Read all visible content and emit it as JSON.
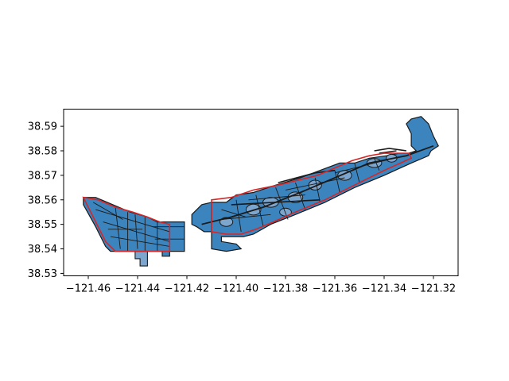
{
  "chart_data": {
    "type": "map",
    "xlim": [
      -121.47,
      -121.31
    ],
    "ylim": [
      38.529,
      38.597
    ],
    "x_ticks": [
      -121.46,
      -121.44,
      -121.42,
      -121.4,
      -121.38,
      -121.36,
      -121.34,
      -121.32
    ],
    "x_tick_labels": [
      "−121.46",
      "−121.44",
      "−121.42",
      "−121.40",
      "−121.38",
      "−121.36",
      "−121.34",
      "−121.32"
    ],
    "y_ticks": [
      38.53,
      38.54,
      38.55,
      38.56,
      38.57,
      38.58,
      38.59
    ],
    "y_tick_labels": [
      "38.53",
      "38.54",
      "38.55",
      "38.56",
      "38.57",
      "38.58",
      "38.59"
    ],
    "fill_color": "#3c84bd",
    "fill_light_color": "#7da6cf",
    "edge_color": "#1a1a1a",
    "outline_color": "#d62728",
    "grid": false,
    "west_region": {
      "shape": [
        [
          -121.462,
          38.561
        ],
        [
          -121.457,
          38.561
        ],
        [
          -121.45,
          38.558
        ],
        [
          -121.443,
          38.555
        ],
        [
          -121.436,
          38.553
        ],
        [
          -121.432,
          38.551
        ],
        [
          -121.426,
          38.551
        ],
        [
          -121.421,
          38.551
        ],
        [
          -121.421,
          38.539
        ],
        [
          -121.427,
          38.539
        ],
        [
          -121.427,
          38.537
        ],
        [
          -121.43,
          38.537
        ],
        [
          -121.43,
          38.539
        ],
        [
          -121.445,
          38.539
        ],
        [
          -121.451,
          38.539
        ],
        [
          -121.453,
          38.541
        ],
        [
          -121.457,
          38.549
        ],
        [
          -121.462,
          38.558
        ]
      ],
      "extension": [
        [
          -121.439,
          38.539
        ],
        [
          -121.436,
          38.539
        ],
        [
          -121.436,
          38.533
        ],
        [
          -121.439,
          38.533
        ],
        [
          -121.439,
          38.536
        ],
        [
          -121.441,
          38.536
        ],
        [
          -121.441,
          38.539
        ]
      ],
      "outline": [
        [
          -121.462,
          38.561
        ],
        [
          -121.456,
          38.56
        ],
        [
          -121.449,
          38.557
        ],
        [
          -121.442,
          38.555
        ],
        [
          -121.436,
          38.553
        ],
        [
          -121.431,
          38.551
        ],
        [
          -121.427,
          38.55
        ],
        [
          -121.427,
          38.539
        ],
        [
          -121.449,
          38.539
        ],
        [
          -121.453,
          38.543
        ],
        [
          -121.457,
          38.551
        ],
        [
          -121.462,
          38.561
        ]
      ],
      "streets": [
        [
          [
            -121.457,
            38.556
          ],
          [
            -121.427,
            38.547
          ]
        ],
        [
          [
            -121.454,
            38.551
          ],
          [
            -121.427,
            38.543
          ]
        ],
        [
          [
            -121.451,
            38.545
          ],
          [
            -121.427,
            38.541
          ]
        ],
        [
          [
            -121.444,
            38.555
          ],
          [
            -121.444,
            38.539
          ]
        ],
        [
          [
            -121.437,
            38.553
          ],
          [
            -121.437,
            38.539
          ]
        ],
        [
          [
            -121.432,
            38.551
          ],
          [
            -121.432,
            38.539
          ]
        ],
        [
          [
            -121.449,
            38.557
          ],
          [
            -121.447,
            38.54
          ]
        ],
        [
          [
            -121.441,
            38.554
          ],
          [
            -121.44,
            38.54
          ]
        ],
        [
          [
            -121.458,
            38.559
          ],
          [
            -121.446,
            38.552
          ]
        ],
        [
          [
            -121.434,
            38.549
          ],
          [
            -121.421,
            38.549
          ]
        ],
        [
          [
            -121.433,
            38.544
          ],
          [
            -121.421,
            38.544
          ]
        ],
        [
          [
            -121.452,
            38.548
          ],
          [
            -121.438,
            38.548
          ]
        ]
      ]
    },
    "east_region": {
      "shape": [
        [
          -121.41,
          38.559
        ],
        [
          -121.404,
          38.559
        ],
        [
          -121.4,
          38.562
        ],
        [
          -121.393,
          38.563
        ],
        [
          -121.384,
          38.566
        ],
        [
          -121.374,
          38.569
        ],
        [
          -121.366,
          38.572
        ],
        [
          -121.358,
          38.575
        ],
        [
          -121.352,
          38.575
        ],
        [
          -121.346,
          38.577
        ],
        [
          -121.339,
          38.578
        ],
        [
          -121.334,
          38.579
        ],
        [
          -121.33,
          38.579
        ],
        [
          -121.327,
          38.58
        ],
        [
          -121.329,
          38.582
        ],
        [
          -121.329,
          38.587
        ],
        [
          -121.331,
          38.591
        ],
        [
          -121.329,
          38.593
        ],
        [
          -121.325,
          38.594
        ],
        [
          -121.322,
          38.591
        ],
        [
          -121.32,
          38.586
        ],
        [
          -121.318,
          38.582
        ],
        [
          -121.321,
          38.58
        ],
        [
          -121.322,
          38.578
        ],
        [
          -121.329,
          38.575
        ],
        [
          -121.34,
          38.57
        ],
        [
          -121.352,
          38.565
        ],
        [
          -121.364,
          38.559
        ],
        [
          -121.376,
          38.554
        ],
        [
          -121.386,
          38.55
        ],
        [
          -121.393,
          38.546
        ],
        [
          -121.397,
          38.545
        ],
        [
          -121.401,
          38.545
        ],
        [
          -121.406,
          38.545
        ],
        [
          -121.406,
          38.543
        ],
        [
          -121.4,
          38.542
        ],
        [
          -121.398,
          38.54
        ],
        [
          -121.404,
          38.539
        ],
        [
          -121.41,
          38.54
        ]
      ],
      "west_tab": [
        [
          -121.41,
          38.559
        ],
        [
          -121.414,
          38.558
        ],
        [
          -121.418,
          38.554
        ],
        [
          -121.418,
          38.55
        ],
        [
          -121.416,
          38.549
        ],
        [
          -121.413,
          38.547
        ],
        [
          -121.41,
          38.547
        ]
      ],
      "outline": [
        [
          -121.41,
          38.56
        ],
        [
          -121.402,
          38.561
        ],
        [
          -121.393,
          38.564
        ],
        [
          -121.383,
          38.566
        ],
        [
          -121.375,
          38.568
        ],
        [
          -121.367,
          38.57
        ],
        [
          -121.36,
          38.573
        ],
        [
          -121.353,
          38.576
        ],
        [
          -121.346,
          38.578
        ],
        [
          -121.34,
          38.579
        ],
        [
          -121.33,
          38.579
        ],
        [
          -121.329,
          38.577
        ],
        [
          -121.34,
          38.572
        ],
        [
          -121.352,
          38.566
        ],
        [
          -121.364,
          38.56
        ],
        [
          -121.376,
          38.555
        ],
        [
          -121.385,
          38.551
        ],
        [
          -121.392,
          38.548
        ],
        [
          -121.398,
          38.546
        ],
        [
          -121.404,
          38.546
        ],
        [
          -121.41,
          38.547
        ],
        [
          -121.41,
          38.56
        ]
      ],
      "highway": [
        [
          -121.414,
          38.55
        ],
        [
          -121.402,
          38.553
        ],
        [
          -121.389,
          38.557
        ],
        [
          -121.374,
          38.563
        ],
        [
          -121.36,
          38.569
        ],
        [
          -121.346,
          38.575
        ],
        [
          -121.331,
          38.578
        ],
        [
          -121.32,
          38.582
        ]
      ],
      "lines": [
        [
          [
            -121.402,
            38.558
          ],
          [
            -121.366,
            38.56
          ]
        ],
        [
          [
            -121.383,
            38.567
          ],
          [
            -121.368,
            38.571
          ],
          [
            -121.36,
            38.572
          ]
        ],
        [
          [
            -121.344,
            38.58
          ],
          [
            -121.338,
            38.581
          ],
          [
            -121.331,
            38.58
          ]
        ],
        [
          [
            -121.342,
            38.579
          ],
          [
            -121.335,
            38.58
          ]
        ]
      ],
      "streets": [
        [
          [
            -121.406,
            38.556
          ],
          [
            -121.396,
            38.553
          ]
        ],
        [
          [
            -121.4,
            38.56
          ],
          [
            -121.398,
            38.547
          ]
        ],
        [
          [
            -121.392,
            38.562
          ],
          [
            -121.389,
            38.549
          ]
        ],
        [
          [
            -121.384,
            38.565
          ],
          [
            -121.379,
            38.552
          ]
        ],
        [
          [
            -121.376,
            38.567
          ],
          [
            -121.372,
            38.556
          ]
        ],
        [
          [
            -121.368,
            38.569
          ],
          [
            -121.366,
            38.559
          ]
        ],
        [
          [
            -121.36,
            38.572
          ],
          [
            -121.358,
            38.563
          ]
        ],
        [
          [
            -121.352,
            38.575
          ],
          [
            -121.35,
            38.567
          ]
        ],
        [
          [
            -121.344,
            38.577
          ],
          [
            -121.342,
            38.572
          ]
        ],
        [
          [
            -121.406,
            38.552
          ],
          [
            -121.386,
            38.554
          ]
        ],
        [
          [
            -121.395,
            38.56
          ],
          [
            -121.372,
            38.562
          ]
        ],
        [
          [
            -121.38,
            38.564
          ],
          [
            -121.356,
            38.569
          ]
        ],
        [
          [
            -121.36,
            38.571
          ],
          [
            -121.336,
            38.577
          ]
        ]
      ],
      "blocks": [
        {
          "cx": -121.393,
          "cy": 38.556,
          "rx": 0.003,
          "ry": 0.0022
        },
        {
          "cx": -121.386,
          "cy": 38.559,
          "rx": 0.0032,
          "ry": 0.002
        },
        {
          "cx": -121.376,
          "cy": 38.561,
          "rx": 0.003,
          "ry": 0.0022
        },
        {
          "cx": -121.368,
          "cy": 38.566,
          "rx": 0.0026,
          "ry": 0.002
        },
        {
          "cx": -121.356,
          "cy": 38.57,
          "rx": 0.0028,
          "ry": 0.002
        },
        {
          "cx": -121.344,
          "cy": 38.575,
          "rx": 0.003,
          "ry": 0.0018
        },
        {
          "cx": -121.404,
          "cy": 38.551,
          "rx": 0.0026,
          "ry": 0.0018
        },
        {
          "cx": -121.38,
          "cy": 38.555,
          "rx": 0.0024,
          "ry": 0.0016
        },
        {
          "cx": -121.337,
          "cy": 38.577,
          "rx": 0.0022,
          "ry": 0.0016
        }
      ]
    }
  }
}
